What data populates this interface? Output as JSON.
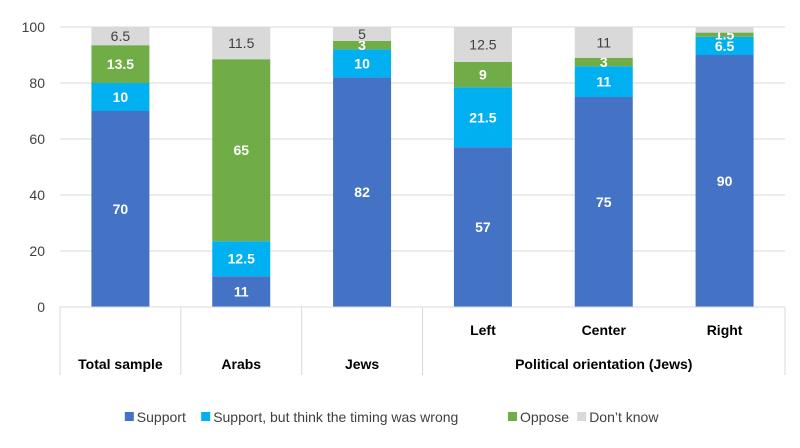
{
  "chart_data": {
    "type": "bar",
    "stacked": true,
    "title": "",
    "xlabel": "",
    "ylabel": "",
    "ylim": [
      0,
      100
    ],
    "yticks": [
      0,
      20,
      40,
      60,
      80,
      100
    ],
    "grid": true,
    "legend_position": "bottom",
    "categories": [
      "Total sample",
      "Arabs",
      "Jews",
      "Left",
      "Center",
      "Right"
    ],
    "groups": [
      {
        "label": "Total sample",
        "categories": [
          "Total sample"
        ]
      },
      {
        "label": "Arabs",
        "categories": [
          "Arabs"
        ]
      },
      {
        "label": "Jews",
        "categories": [
          "Jews"
        ]
      },
      {
        "label": "Political orientation (Jews)",
        "categories": [
          "Left",
          "Center",
          "Right"
        ]
      }
    ],
    "sub_labels": [
      "",
      "",
      "",
      "Left",
      "Center",
      "Right"
    ],
    "series": [
      {
        "name": "Support",
        "color": "#4472C4",
        "values": [
          70,
          11,
          82,
          57,
          75,
          90
        ],
        "labels": [
          "70",
          "11",
          "82",
          "57",
          "75",
          "90"
        ]
      },
      {
        "name": "Support, but think the timing was wrong",
        "color": "#00B0F0",
        "values": [
          10,
          12.5,
          10,
          21.5,
          11,
          6.5
        ],
        "labels": [
          "10",
          "12.5",
          "10",
          "21.5",
          "11",
          "6.5"
        ]
      },
      {
        "name": "Oppose",
        "color": "#70AD47",
        "values": [
          13.5,
          65,
          3,
          9,
          3,
          1.5
        ],
        "labels": [
          "13.5",
          "65",
          "3",
          "9",
          "3",
          "1.5"
        ]
      },
      {
        "name": "Don’t know",
        "color": "#D9D9D9",
        "values": [
          6.5,
          11.5,
          5,
          12.5,
          11,
          2
        ],
        "labels": [
          "6.5",
          "11.5",
          "5",
          "12.5",
          "11",
          ""
        ]
      }
    ]
  }
}
